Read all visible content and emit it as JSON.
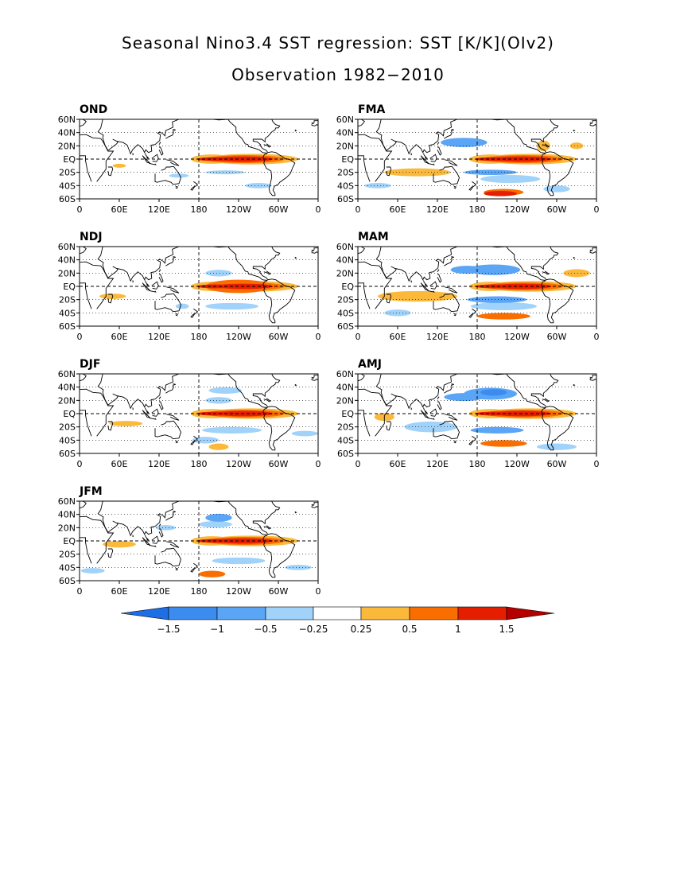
{
  "title_line1": "Seasonal Nino3.4 SST regression: SST [K/K](OIv2)",
  "title_line2": "Observation 1982−2010",
  "colors": {
    "deep_blue": "#1e6ee6",
    "blue": "#3c8cf0",
    "mid_blue": "#5aa5f5",
    "light_blue": "#a0d2fa",
    "white": "#ffffff",
    "light_orange": "#fbb93c",
    "orange": "#fa6e00",
    "red": "#e61e00",
    "dark_red": "#b40000",
    "land_outline": "#000000",
    "grid": "#000000"
  },
  "chart_data": {
    "type": "heatmap",
    "variable": "SST regression on Nino3.4 SST",
    "units": "K/K",
    "lon_range": [
      0,
      360
    ],
    "lat_range": [
      -60,
      60
    ],
    "x_ticks": [
      "0",
      "60E",
      "120E",
      "180",
      "120W",
      "60W",
      "0"
    ],
    "y_ticks": [
      "60N",
      "40N",
      "20N",
      "EQ",
      "20S",
      "40S",
      "60S"
    ],
    "x_tick_values": [
      0,
      60,
      120,
      180,
      240,
      300,
      360
    ],
    "y_tick_values": [
      60,
      40,
      20,
      0,
      -20,
      -40,
      -60
    ],
    "contour_levels": [
      -1.5,
      -1,
      -0.5,
      -0.25,
      0.25,
      0.5,
      1,
      1.5
    ],
    "colorbar_labels": [
      "−1.5",
      "−1",
      "−0.5",
      "−0.25",
      "0.25",
      "0.5",
      "1",
      "1.5"
    ],
    "panels": [
      {
        "season": "OND",
        "column": "left",
        "row": 1
      },
      {
        "season": "NDJ",
        "column": "left",
        "row": 2
      },
      {
        "season": "DJF",
        "column": "left",
        "row": 3
      },
      {
        "season": "JFM",
        "column": "left",
        "row": 4
      },
      {
        "season": "FMA",
        "column": "right",
        "row": 1
      },
      {
        "season": "MAM",
        "column": "right",
        "row": 2
      },
      {
        "season": "AMJ",
        "column": "right",
        "row": 3
      }
    ]
  }
}
